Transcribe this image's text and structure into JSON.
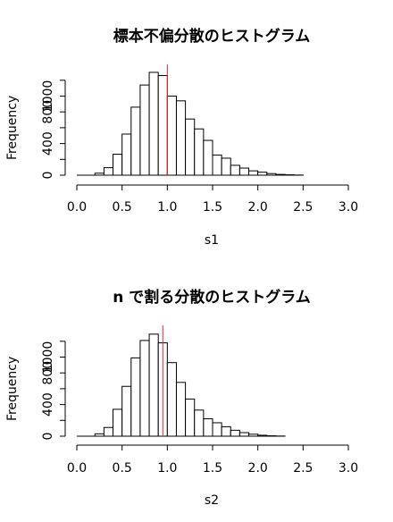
{
  "chart_data": [
    {
      "type": "bar",
      "title": "標本不偏分散のヒストグラム",
      "xlabel": "s1",
      "ylabel": "Frequency",
      "xlim": [
        0,
        3
      ],
      "ylim": [
        0,
        1250
      ],
      "xticks": [
        "0.0",
        "0.5",
        "1.0",
        "1.5",
        "2.0",
        "2.5",
        "3.0"
      ],
      "yticks": [
        "0",
        "400",
        "800",
        "1000"
      ],
      "bin_width": 0.1,
      "bins": [
        {
          "x0": 0.0,
          "count": 0
        },
        {
          "x0": 0.1,
          "count": 0
        },
        {
          "x0": 0.2,
          "count": 25
        },
        {
          "x0": 0.3,
          "count": 95
        },
        {
          "x0": 0.4,
          "count": 265
        },
        {
          "x0": 0.5,
          "count": 520
        },
        {
          "x0": 0.6,
          "count": 860
        },
        {
          "x0": 0.7,
          "count": 1140
        },
        {
          "x0": 0.8,
          "count": 1300
        },
        {
          "x0": 0.9,
          "count": 1260
        },
        {
          "x0": 1.0,
          "count": 1000
        },
        {
          "x0": 1.1,
          "count": 940
        },
        {
          "x0": 1.2,
          "count": 710
        },
        {
          "x0": 1.3,
          "count": 585
        },
        {
          "x0": 1.4,
          "count": 440
        },
        {
          "x0": 1.5,
          "count": 255
        },
        {
          "x0": 1.6,
          "count": 215
        },
        {
          "x0": 1.7,
          "count": 125
        },
        {
          "x0": 1.8,
          "count": 90
        },
        {
          "x0": 1.9,
          "count": 55
        },
        {
          "x0": 2.0,
          "count": 38
        },
        {
          "x0": 2.1,
          "count": 20
        },
        {
          "x0": 2.2,
          "count": 10
        },
        {
          "x0": 2.3,
          "count": 5
        },
        {
          "x0": 2.4,
          "count": 2
        }
      ],
      "reference_line": {
        "x": 1.0,
        "color": "#e8262b"
      }
    },
    {
      "type": "bar",
      "title_bold_part": "n",
      "title": " で割る分散のヒストグラム",
      "xlabel": "s2",
      "ylabel": "Frequency",
      "xlim": [
        0,
        3
      ],
      "ylim": [
        0,
        1250
      ],
      "xticks": [
        "0.0",
        "0.5",
        "1.0",
        "1.5",
        "2.0",
        "2.5",
        "3.0"
      ],
      "yticks": [
        "0",
        "400",
        "800",
        "1000"
      ],
      "bin_width": 0.1,
      "bins": [
        {
          "x0": 0.0,
          "count": 0
        },
        {
          "x0": 0.1,
          "count": 0
        },
        {
          "x0": 0.2,
          "count": 30
        },
        {
          "x0": 0.3,
          "count": 110
        },
        {
          "x0": 0.4,
          "count": 340
        },
        {
          "x0": 0.5,
          "count": 630
        },
        {
          "x0": 0.6,
          "count": 990
        },
        {
          "x0": 0.7,
          "count": 1210
        },
        {
          "x0": 0.8,
          "count": 1290
        },
        {
          "x0": 0.9,
          "count": 1180
        },
        {
          "x0": 1.0,
          "count": 930
        },
        {
          "x0": 1.1,
          "count": 680
        },
        {
          "x0": 1.2,
          "count": 470
        },
        {
          "x0": 1.3,
          "count": 330
        },
        {
          "x0": 1.4,
          "count": 220
        },
        {
          "x0": 1.5,
          "count": 170
        },
        {
          "x0": 1.6,
          "count": 120
        },
        {
          "x0": 1.7,
          "count": 75
        },
        {
          "x0": 1.8,
          "count": 45
        },
        {
          "x0": 1.9,
          "count": 25
        },
        {
          "x0": 2.0,
          "count": 12
        },
        {
          "x0": 2.1,
          "count": 5
        },
        {
          "x0": 2.2,
          "count": 2
        }
      ],
      "reference_line": {
        "x": 0.95,
        "color": "#e8262b"
      }
    }
  ]
}
